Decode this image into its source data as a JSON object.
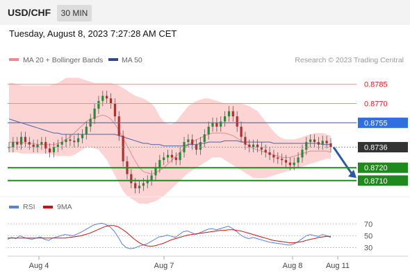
{
  "header": {
    "pair": "USD/CHF",
    "timeframe": "30 MIN",
    "datetime": "Tuesday, August 8, 2023 7:27:28 AM CET"
  },
  "legend": {
    "bb_label": "MA 20 + Bollinger Bands",
    "ma50_label": "MA 50",
    "credit": "Research © 2023 Trading Central"
  },
  "colors": {
    "resistance": "#e84c4c",
    "pivot_blue": "#2f6fe0",
    "support": "#1e8a1e",
    "candle_up": "#2a8a3a",
    "candle_down": "#b03030",
    "band_fill": "#fcd4d4",
    "ma20": "#e88b8b",
    "ma50": "#4a63a8",
    "arrow": "#2c5aa0",
    "rsi": "#5a7fe0",
    "rsi_ma": "#d01010"
  },
  "chart_data": [
    {
      "type": "candlestick",
      "ylim": [
        0.8698,
        0.8794
      ],
      "levels": [
        {
          "value": "0.8785",
          "kind": "resistance"
        },
        {
          "value": "0.8770",
          "kind": "resistance"
        },
        {
          "value": "0.8755",
          "kind": "pivot"
        },
        {
          "value": "0.8736",
          "kind": "last"
        },
        {
          "value": "0.8720",
          "kind": "support"
        },
        {
          "value": "0.8710",
          "kind": "support"
        }
      ],
      "price": [
        0.8736,
        0.874,
        0.8738,
        0.8744,
        0.874,
        0.8738,
        0.8736,
        0.8738,
        0.874,
        0.8735,
        0.8732,
        0.8736,
        0.8738,
        0.874,
        0.8742,
        0.8741,
        0.874,
        0.8743,
        0.8746,
        0.8752,
        0.8758,
        0.8766,
        0.8772,
        0.8776,
        0.8774,
        0.877,
        0.876,
        0.8745,
        0.8725,
        0.8715,
        0.8708,
        0.8704,
        0.8706,
        0.8708,
        0.871,
        0.8714,
        0.872,
        0.8726,
        0.8728,
        0.873,
        0.8728,
        0.8726,
        0.8732,
        0.874,
        0.8742,
        0.8738,
        0.8734,
        0.874,
        0.8746,
        0.8752,
        0.8755,
        0.8752,
        0.8756,
        0.876,
        0.8764,
        0.876,
        0.8752,
        0.8744,
        0.8738,
        0.8736,
        0.8738,
        0.8736,
        0.8734,
        0.8732,
        0.873,
        0.8728,
        0.8727,
        0.8726,
        0.8724,
        0.8722,
        0.8724,
        0.8728,
        0.8734,
        0.874,
        0.8742,
        0.874,
        0.8738,
        0.8741,
        0.8739,
        0.8736
      ],
      "ma20": [
        0.874,
        0.874,
        0.874,
        0.874,
        0.8739,
        0.8739,
        0.8739,
        0.8738,
        0.8738,
        0.8738,
        0.8738,
        0.8738,
        0.8739,
        0.874,
        0.8742,
        0.8744,
        0.8747,
        0.875,
        0.8753,
        0.8756,
        0.8758,
        0.8759,
        0.876,
        0.8761,
        0.876,
        0.8758,
        0.8754,
        0.8749,
        0.8743,
        0.8737,
        0.8731,
        0.8725,
        0.872,
        0.8717,
        0.8716,
        0.8715,
        0.8716,
        0.8718,
        0.872,
        0.8723,
        0.8726,
        0.8729,
        0.8732,
        0.8735,
        0.8738,
        0.874,
        0.8742,
        0.8743,
        0.8745,
        0.8746,
        0.8747,
        0.8747,
        0.8747,
        0.8747,
        0.8746,
        0.8745,
        0.8743,
        0.8741,
        0.8739,
        0.8737,
        0.8735,
        0.8734,
        0.8733,
        0.8732,
        0.8731,
        0.873,
        0.8729,
        0.8728,
        0.8728,
        0.8728,
        0.8729,
        0.873,
        0.8731,
        0.8732,
        0.8733,
        0.8733,
        0.8733,
        0.8733,
        0.8733,
        0.8732
      ],
      "bb_upper": [
        0.8786,
        0.8786,
        0.8785,
        0.8784,
        0.8784,
        0.8784,
        0.8784,
        0.8784,
        0.8784,
        0.8784,
        0.8784,
        0.8785,
        0.8786,
        0.8788,
        0.879,
        0.879,
        0.879,
        0.879,
        0.8789,
        0.8788,
        0.8787,
        0.8786,
        0.8786,
        0.8786,
        0.8786,
        0.8786,
        0.8785,
        0.8784,
        0.8782,
        0.878,
        0.8778,
        0.8776,
        0.8775,
        0.8774,
        0.8772,
        0.877,
        0.8766,
        0.876,
        0.8756,
        0.8754,
        0.8754,
        0.8756,
        0.876,
        0.8764,
        0.8768,
        0.877,
        0.8772,
        0.8773,
        0.8774,
        0.8774,
        0.8773,
        0.8772,
        0.8771,
        0.877,
        0.877,
        0.877,
        0.877,
        0.877,
        0.8769,
        0.8768,
        0.8766,
        0.8764,
        0.876,
        0.8756,
        0.8752,
        0.8748,
        0.8745,
        0.8743,
        0.8742,
        0.8742,
        0.8742,
        0.8743,
        0.8744,
        0.8745,
        0.8746,
        0.8747,
        0.8747,
        0.8747,
        0.8746,
        0.8745
      ],
      "bb_lower": [
        0.8732,
        0.8732,
        0.8732,
        0.8731,
        0.8731,
        0.8731,
        0.8731,
        0.8731,
        0.8731,
        0.8731,
        0.8731,
        0.873,
        0.8729,
        0.8729,
        0.8729,
        0.8729,
        0.873,
        0.8732,
        0.8734,
        0.8736,
        0.8736,
        0.8735,
        0.8734,
        0.873,
        0.8726,
        0.872,
        0.8714,
        0.8708,
        0.8702,
        0.8698,
        0.8696,
        0.8694,
        0.8692,
        0.8692,
        0.8692,
        0.8693,
        0.8694,
        0.8696,
        0.8698,
        0.8701,
        0.8704,
        0.8707,
        0.871,
        0.8713,
        0.8716,
        0.8718,
        0.872,
        0.8722,
        0.8724,
        0.8726,
        0.8728,
        0.8728,
        0.8728,
        0.8726,
        0.8724,
        0.8722,
        0.872,
        0.8718,
        0.8716,
        0.8714,
        0.8712,
        0.8712,
        0.8712,
        0.8712,
        0.8713,
        0.8714,
        0.8715,
        0.8716,
        0.8717,
        0.8718,
        0.8719,
        0.872,
        0.8721,
        0.8722,
        0.8723,
        0.8724,
        0.8725,
        0.8726,
        0.8727,
        0.8727
      ],
      "ma50": [
        0.8758,
        0.8757,
        0.8756,
        0.8755,
        0.8754,
        0.8753,
        0.8752,
        0.8751,
        0.875,
        0.8749,
        0.8748,
        0.8747,
        0.8747,
        0.8746,
        0.8746,
        0.8746,
        0.8746,
        0.8746,
        0.8746,
        0.8746,
        0.8746,
        0.8746,
        0.8746,
        0.8746,
        0.8746,
        0.8746,
        0.8746,
        0.8745,
        0.8744,
        0.8743,
        0.8742,
        0.8741,
        0.874,
        0.8739,
        0.8739,
        0.8738,
        0.8738,
        0.8738,
        0.8737,
        0.8737,
        0.8737,
        0.8737,
        0.8737,
        0.8737,
        0.8738,
        0.8738,
        0.8738,
        0.8739,
        0.8739,
        0.874,
        0.874,
        0.874,
        0.874,
        0.8741,
        0.8741,
        0.8741,
        0.8741,
        0.874,
        0.874,
        0.874,
        0.874,
        0.874,
        0.874,
        0.874,
        0.874,
        0.8739,
        0.8739,
        0.8739,
        0.8739,
        0.8739,
        0.8739,
        0.8739,
        0.8739,
        0.8739,
        0.8739,
        0.8739,
        0.8739,
        0.8738,
        0.8738,
        0.8738
      ],
      "forecast": {
        "from": 0.8736,
        "to": 0.8712
      }
    },
    {
      "type": "line",
      "ylim": [
        20,
        82
      ],
      "ticks": [
        "70",
        "50",
        "30"
      ],
      "series": [
        {
          "name": "RSI",
          "values": [
            44,
            47,
            45,
            50,
            47,
            45,
            44,
            46,
            48,
            44,
            42,
            46,
            48,
            50,
            52,
            51,
            50,
            53,
            56,
            60,
            64,
            68,
            70,
            71,
            69,
            65,
            58,
            48,
            36,
            30,
            28,
            29,
            32,
            34,
            36,
            40,
            44,
            48,
            49,
            51,
            49,
            47,
            52,
            57,
            58,
            55,
            52,
            55,
            58,
            61,
            62,
            60,
            62,
            64,
            66,
            62,
            57,
            51,
            47,
            45,
            47,
            45,
            43,
            41,
            39,
            38,
            37,
            36,
            35,
            34,
            36,
            40,
            45,
            50,
            52,
            50,
            49,
            52,
            50,
            47
          ]
        },
        {
          "name": "9MA",
          "values": [
            46,
            46,
            46,
            46,
            46,
            46,
            46,
            46,
            46,
            46,
            46,
            46,
            46,
            46,
            46,
            47,
            48,
            49,
            50,
            52,
            54,
            57,
            60,
            63,
            66,
            67,
            67,
            65,
            61,
            56,
            50,
            44,
            39,
            35,
            33,
            32,
            33,
            35,
            37,
            40,
            43,
            45,
            47,
            49,
            51,
            52,
            53,
            54,
            55,
            56,
            57,
            58,
            59,
            59,
            60,
            60,
            59,
            58,
            56,
            54,
            52,
            50,
            48,
            46,
            44,
            42,
            41,
            40,
            39,
            38,
            38,
            39,
            40,
            42,
            44,
            45,
            47,
            48,
            49,
            49
          ]
        }
      ]
    }
  ],
  "xaxis": {
    "ticks": [
      "Aug 4",
      "Aug 7",
      "Aug 8",
      "Aug 11"
    ]
  },
  "rsi_legend": {
    "rsi_label": "RSI",
    "ma_label": "9MA"
  }
}
